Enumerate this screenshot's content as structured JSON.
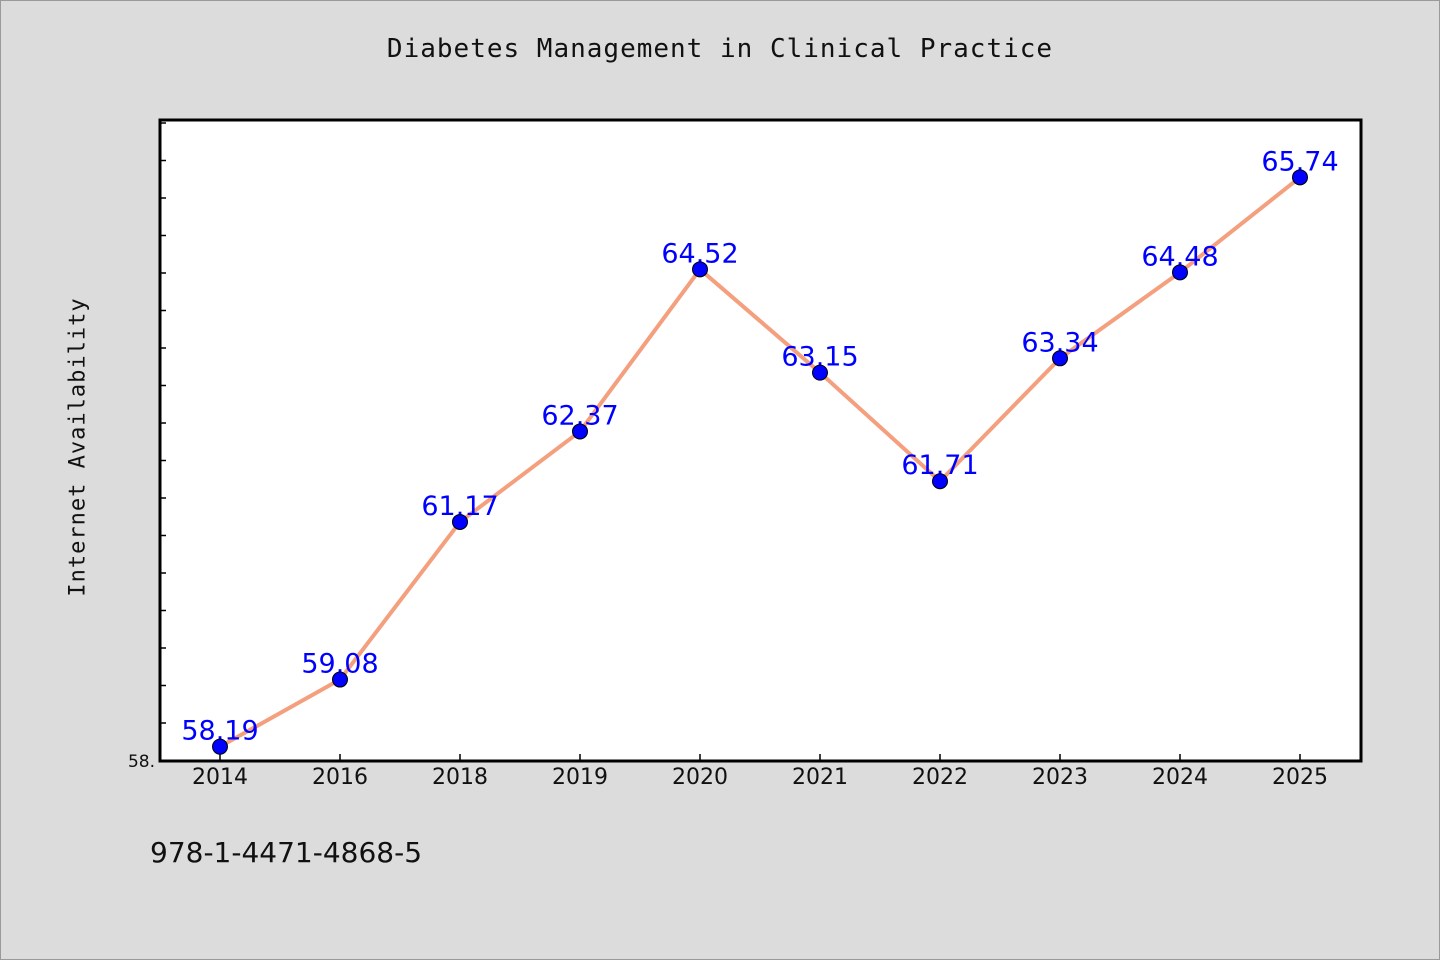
{
  "chart_data": {
    "type": "line",
    "title": "Diabetes Management in Clinical Practice",
    "xlabel": "",
    "ylabel": "Internet Availability",
    "categories": [
      "2014",
      "2016",
      "2018",
      "2019",
      "2020",
      "2021",
      "2022",
      "2023",
      "2024",
      "2025"
    ],
    "series": [
      {
        "values": [
          58.19,
          59.08,
          61.17,
          62.37,
          64.52,
          63.15,
          61.71,
          63.34,
          64.48,
          65.74
        ],
        "data_labels": [
          "58.19",
          "59.08",
          "61.17",
          "62.37",
          "64.52",
          "63.15",
          "61.71",
          "63.34",
          "64.48",
          "65.74"
        ]
      }
    ],
    "y_tick_label": "58.",
    "ylim": [
      58.0,
      66.5
    ],
    "grid": false,
    "legend": "none",
    "colors": {
      "line": "#f4a07f",
      "marker": "#0000ff",
      "data_label": "#0000ff",
      "background": "#dcdcdc",
      "plot_area": "#ffffff"
    }
  },
  "footer": {
    "isbn": "978-1-4471-4868-5"
  }
}
